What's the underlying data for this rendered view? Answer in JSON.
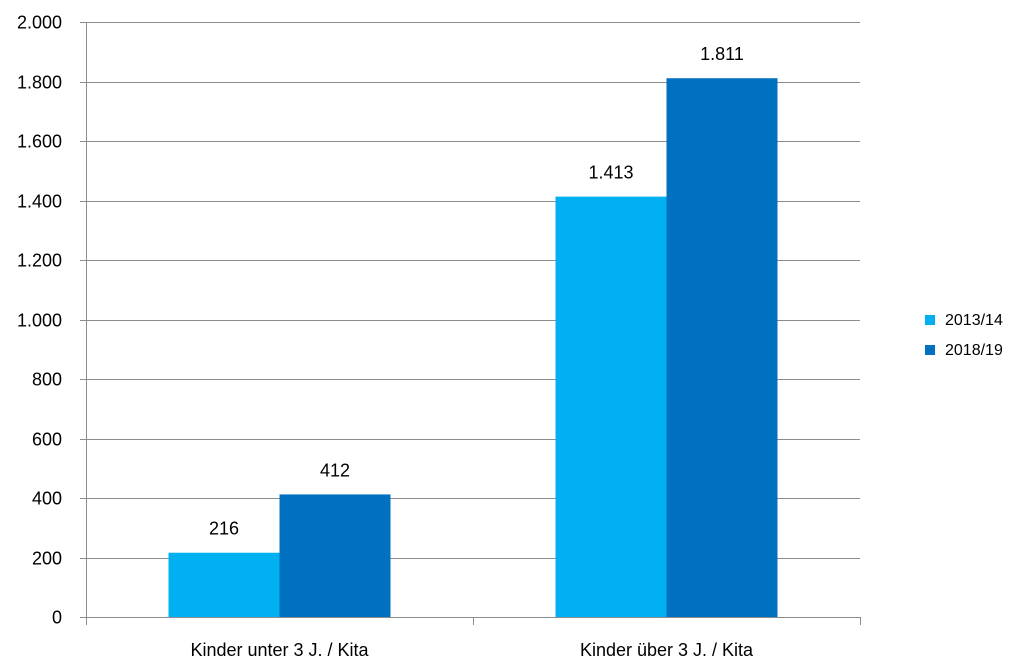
{
  "chart_data": {
    "type": "bar",
    "title": "",
    "xlabel": "",
    "ylabel": "",
    "categories": [
      "Kinder unter 3 J. / Kita",
      "Kinder über 3 J. / Kita"
    ],
    "series": [
      {
        "name": "2013/14",
        "values": [
          216,
          1413
        ],
        "color": "#00b0f0",
        "labels": [
          "216",
          "1.413"
        ]
      },
      {
        "name": "2018/19",
        "values": [
          412,
          1811
        ],
        "color": "#0070c0",
        "labels": [
          "412",
          "1.811"
        ]
      }
    ],
    "ylim": [
      0,
      2000
    ],
    "yticks": [
      0,
      200,
      400,
      600,
      800,
      1000,
      1200,
      1400,
      1600,
      1800,
      2000
    ],
    "ytick_labels": [
      "0",
      "200",
      "400",
      "600",
      "800",
      "1.000",
      "1.200",
      "1.400",
      "1.600",
      "1.800",
      "2.000"
    ],
    "grid": true,
    "legend_position": "right"
  }
}
